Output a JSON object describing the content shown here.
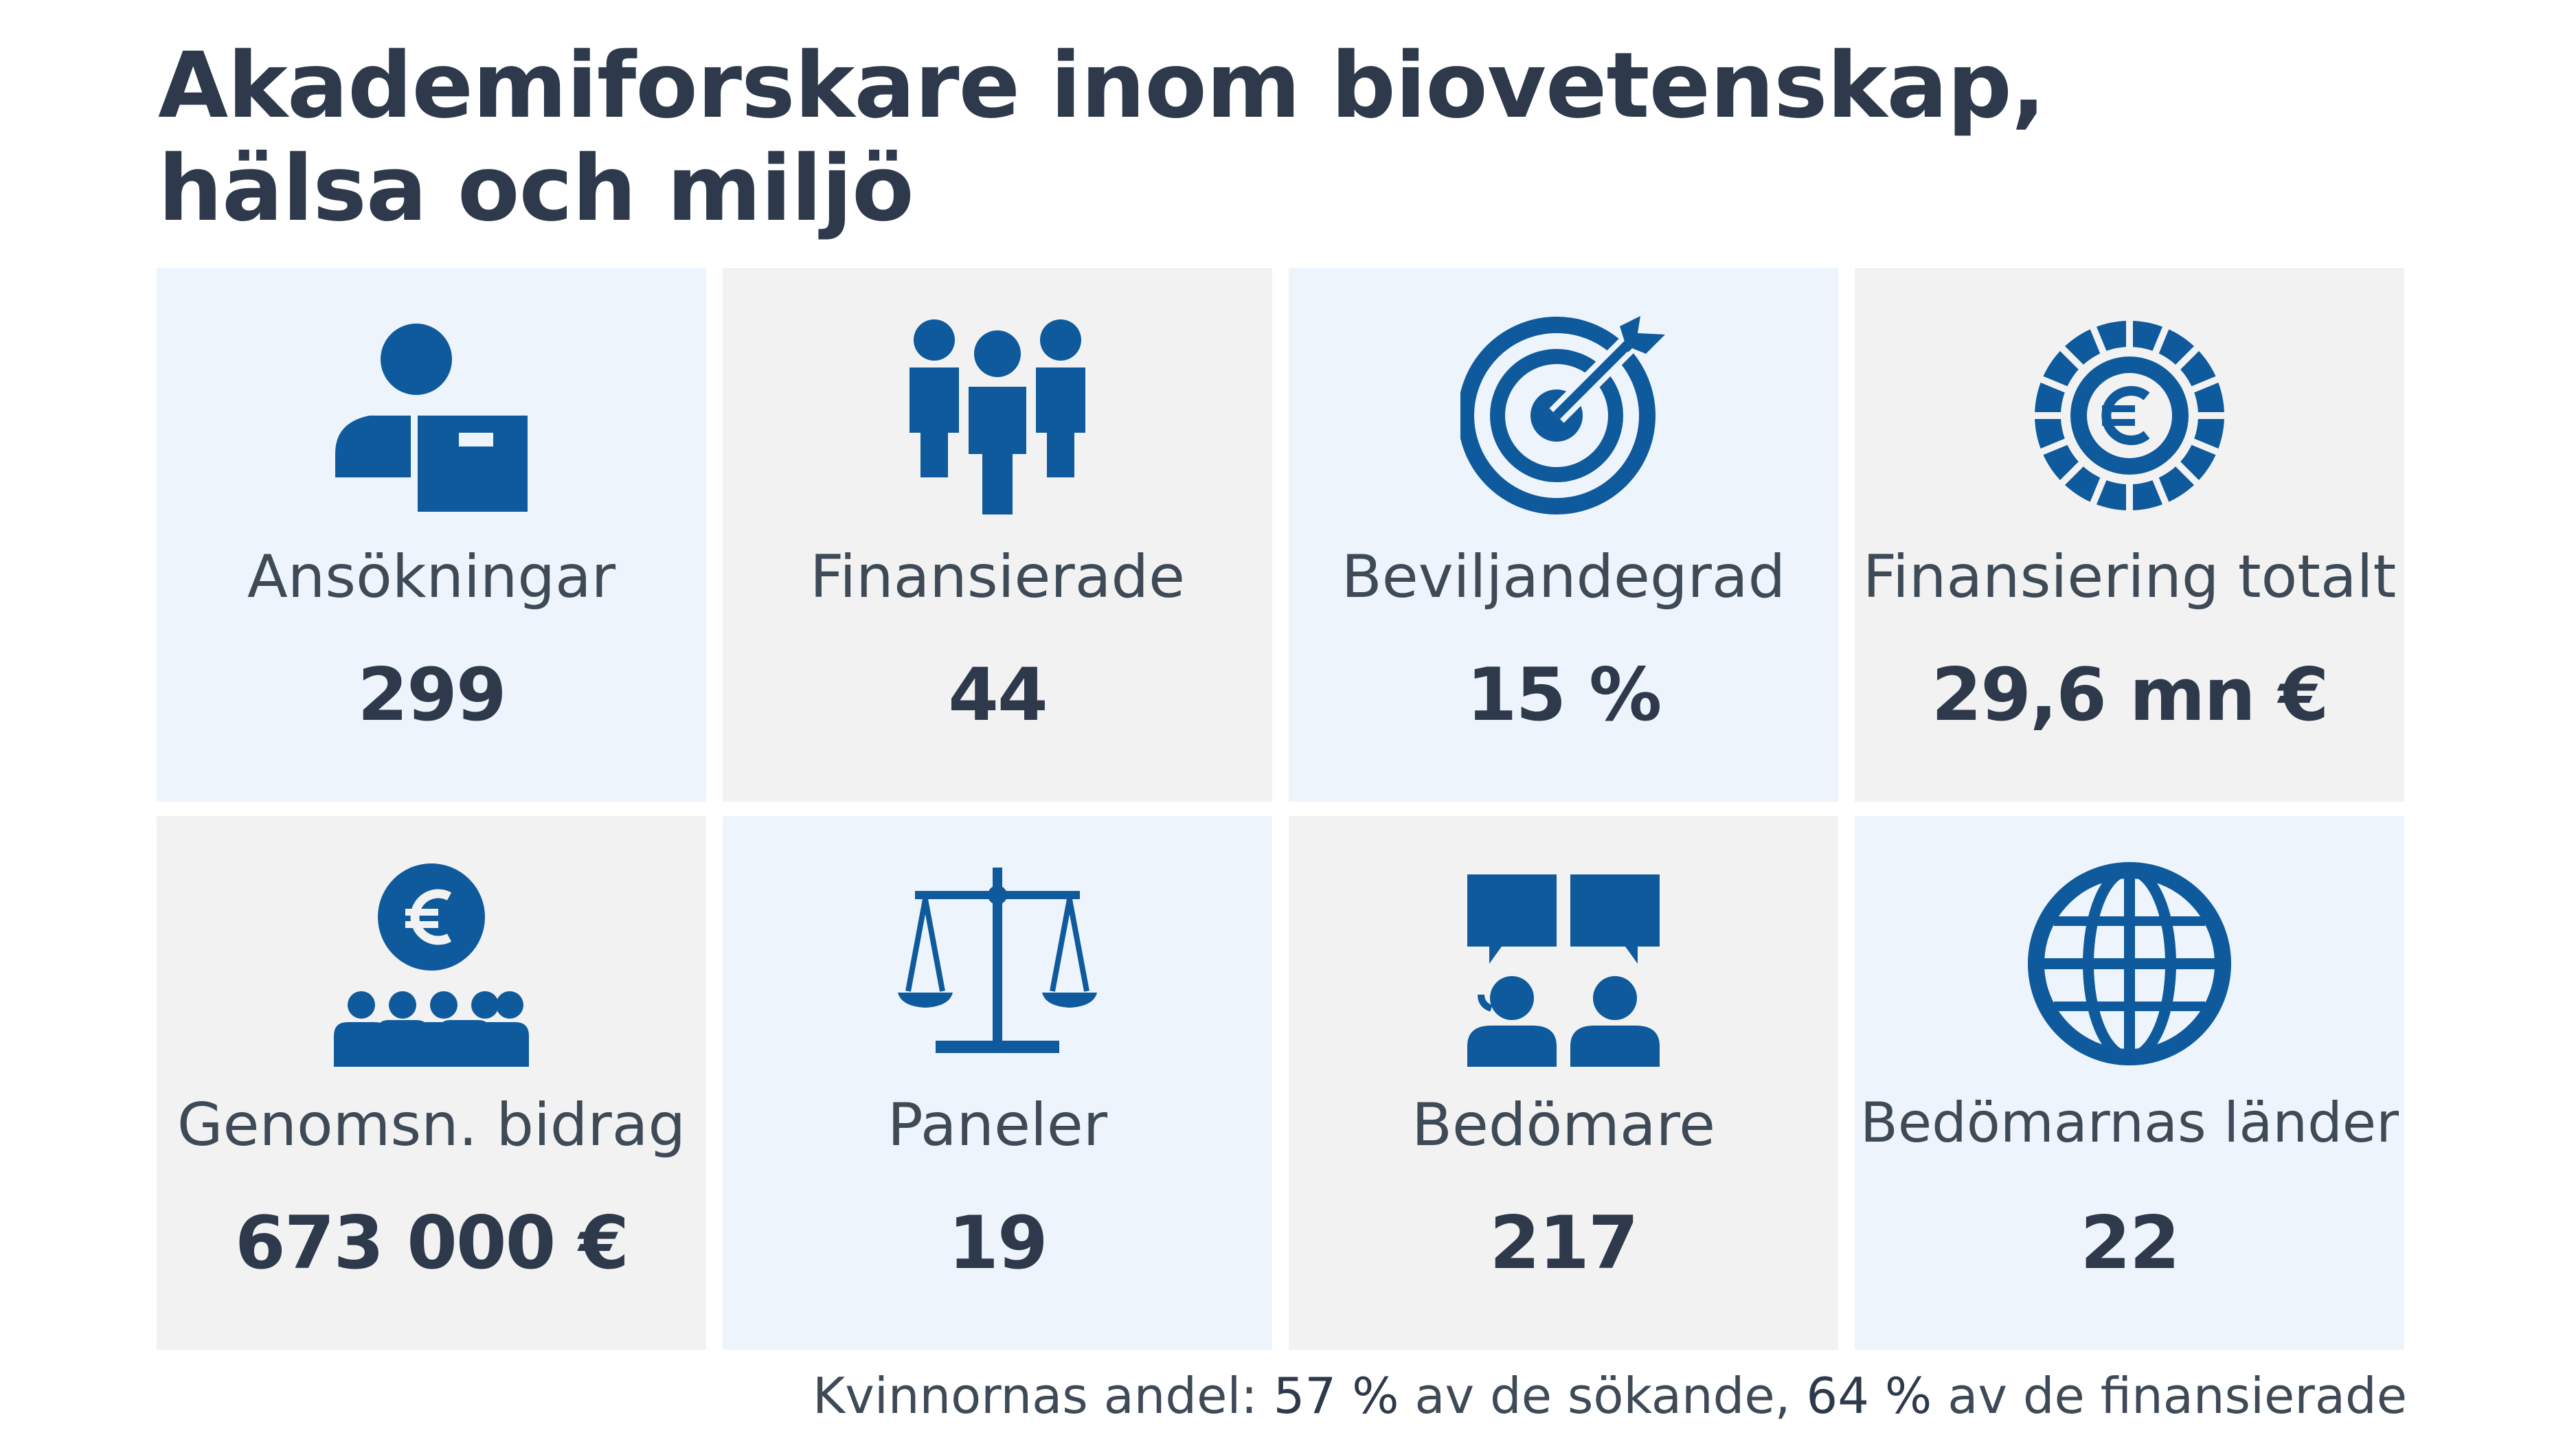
{
  "title": {
    "line1": "Akademiforskare inom biovetenskap,",
    "line2": "hälsa och miljö"
  },
  "colors": {
    "icon": "#0f5a9c",
    "text_dark": "#2e3a4b",
    "tile_light": "#edf4fc",
    "tile_grey": "#f2f2f2"
  },
  "tiles": [
    {
      "label": "Ansökningar",
      "value": "299",
      "icon": "applicant-icon"
    },
    {
      "label": "Finansierade",
      "value": "44",
      "icon": "group-icon"
    },
    {
      "label": "Beviljandegrad",
      "value": "15 %",
      "icon": "target-icon"
    },
    {
      "label": "Finansiering totalt",
      "value": "29,6 mn €",
      "icon": "euro-coin-icon"
    },
    {
      "label": "Genomsn. bidrag",
      "value": "673 000 €",
      "icon": "euro-people-icon"
    },
    {
      "label": "Paneler",
      "value": "19",
      "icon": "scales-icon"
    },
    {
      "label": "Bedömare",
      "value": "217",
      "icon": "reviewers-icon"
    },
    {
      "label": "Bedömarnas länder",
      "value": "22",
      "icon": "globe-icon"
    }
  ],
  "footer": {
    "prefix": "Kvinnornas andel: ",
    "pct1": "57 %",
    "mid": " av de sökande, ",
    "pct2": "64 %",
    "suffix": " av de finansierade"
  }
}
